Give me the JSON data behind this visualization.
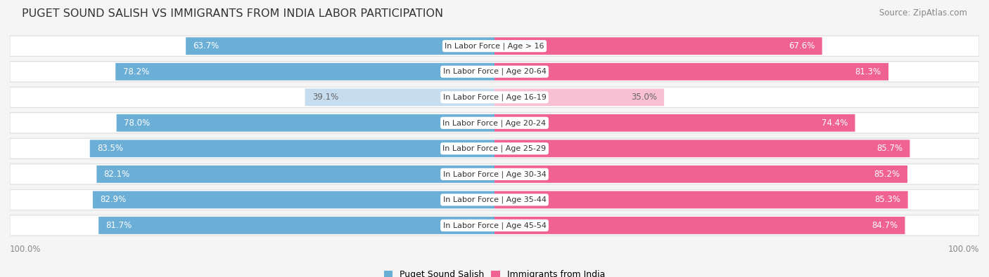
{
  "title": "PUGET SOUND SALISH VS IMMIGRANTS FROM INDIA LABOR PARTICIPATION",
  "source": "Source: ZipAtlas.com",
  "categories": [
    "In Labor Force | Age > 16",
    "In Labor Force | Age 20-64",
    "In Labor Force | Age 16-19",
    "In Labor Force | Age 20-24",
    "In Labor Force | Age 25-29",
    "In Labor Force | Age 30-34",
    "In Labor Force | Age 35-44",
    "In Labor Force | Age 45-54"
  ],
  "left_values": [
    63.7,
    78.2,
    39.1,
    78.0,
    83.5,
    82.1,
    82.9,
    81.7
  ],
  "right_values": [
    67.6,
    81.3,
    35.0,
    74.4,
    85.7,
    85.2,
    85.3,
    84.7
  ],
  "left_color": "#6BAED6",
  "right_color": "#F06292",
  "left_color_light": "#C6DCEF",
  "right_color_light": "#F9C0D4",
  "left_label": "Puget Sound Salish",
  "right_label": "Immigrants from India",
  "axis_max": 100.0,
  "title_fontsize": 11.5,
  "source_fontsize": 8.5,
  "bar_label_fontsize": 8.5,
  "category_fontsize": 8.0,
  "bg_color": "#F5F5F5",
  "row_bg_color": "#EBEBEB",
  "row_bg_edge": "#DDDDDD",
  "text_dark": "#333333",
  "text_gray": "#888888"
}
